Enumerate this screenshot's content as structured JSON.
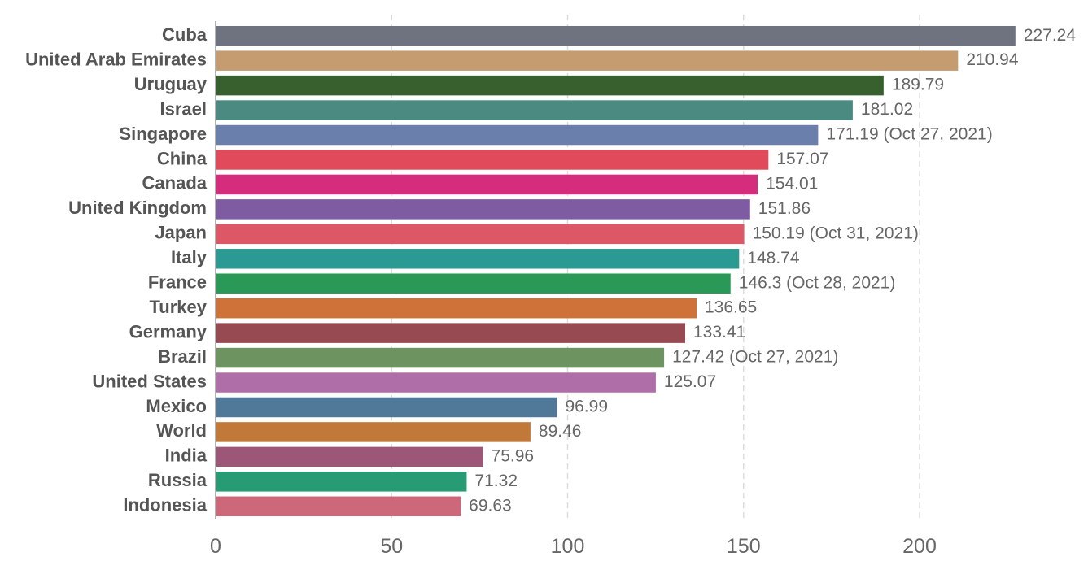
{
  "chart_data": {
    "type": "bar",
    "orientation": "horizontal",
    "categories": [
      "Cuba",
      "United Arab Emirates",
      "Uruguay",
      "Israel",
      "Singapore",
      "China",
      "Canada",
      "United Kingdom",
      "Japan",
      "Italy",
      "France",
      "Turkey",
      "Germany",
      "Brazil",
      "United States",
      "Mexico",
      "World",
      "India",
      "Russia",
      "Indonesia"
    ],
    "values": [
      227.24,
      210.94,
      189.79,
      181.02,
      171.19,
      157.07,
      154.01,
      151.86,
      150.19,
      148.74,
      146.3,
      136.65,
      133.41,
      127.42,
      125.07,
      96.99,
      89.46,
      75.96,
      71.32,
      69.63
    ],
    "value_labels": [
      "227.24",
      "210.94",
      "189.79",
      "181.02",
      "171.19 (Oct 27, 2021)",
      "157.07",
      "154.01",
      "151.86",
      "150.19 (Oct 31, 2021)",
      "148.74",
      "146.3 (Oct 28, 2021)",
      "136.65",
      "133.41",
      "127.42 (Oct 27, 2021)",
      "125.07",
      "96.99",
      "89.46",
      "75.96",
      "71.32",
      "69.63"
    ],
    "colors": [
      "#6f7380",
      "#c49c6f",
      "#38602e",
      "#4a8a80",
      "#6a7fab",
      "#e04a5a",
      "#d62c7e",
      "#7f5ba1",
      "#dd5866",
      "#2b9a92",
      "#2a9958",
      "#cf723a",
      "#984a52",
      "#6d9460",
      "#b06ea8",
      "#4f7899",
      "#c1793a",
      "#9c5678",
      "#279b73",
      "#cc6879"
    ],
    "x_ticks": [
      0,
      50,
      100,
      150,
      200
    ],
    "x_tick_labels": [
      "0",
      "50",
      "100",
      "150",
      "200"
    ],
    "xlim": [
      0,
      236
    ],
    "grid": true,
    "title": "",
    "xlabel": "",
    "ylabel": ""
  }
}
